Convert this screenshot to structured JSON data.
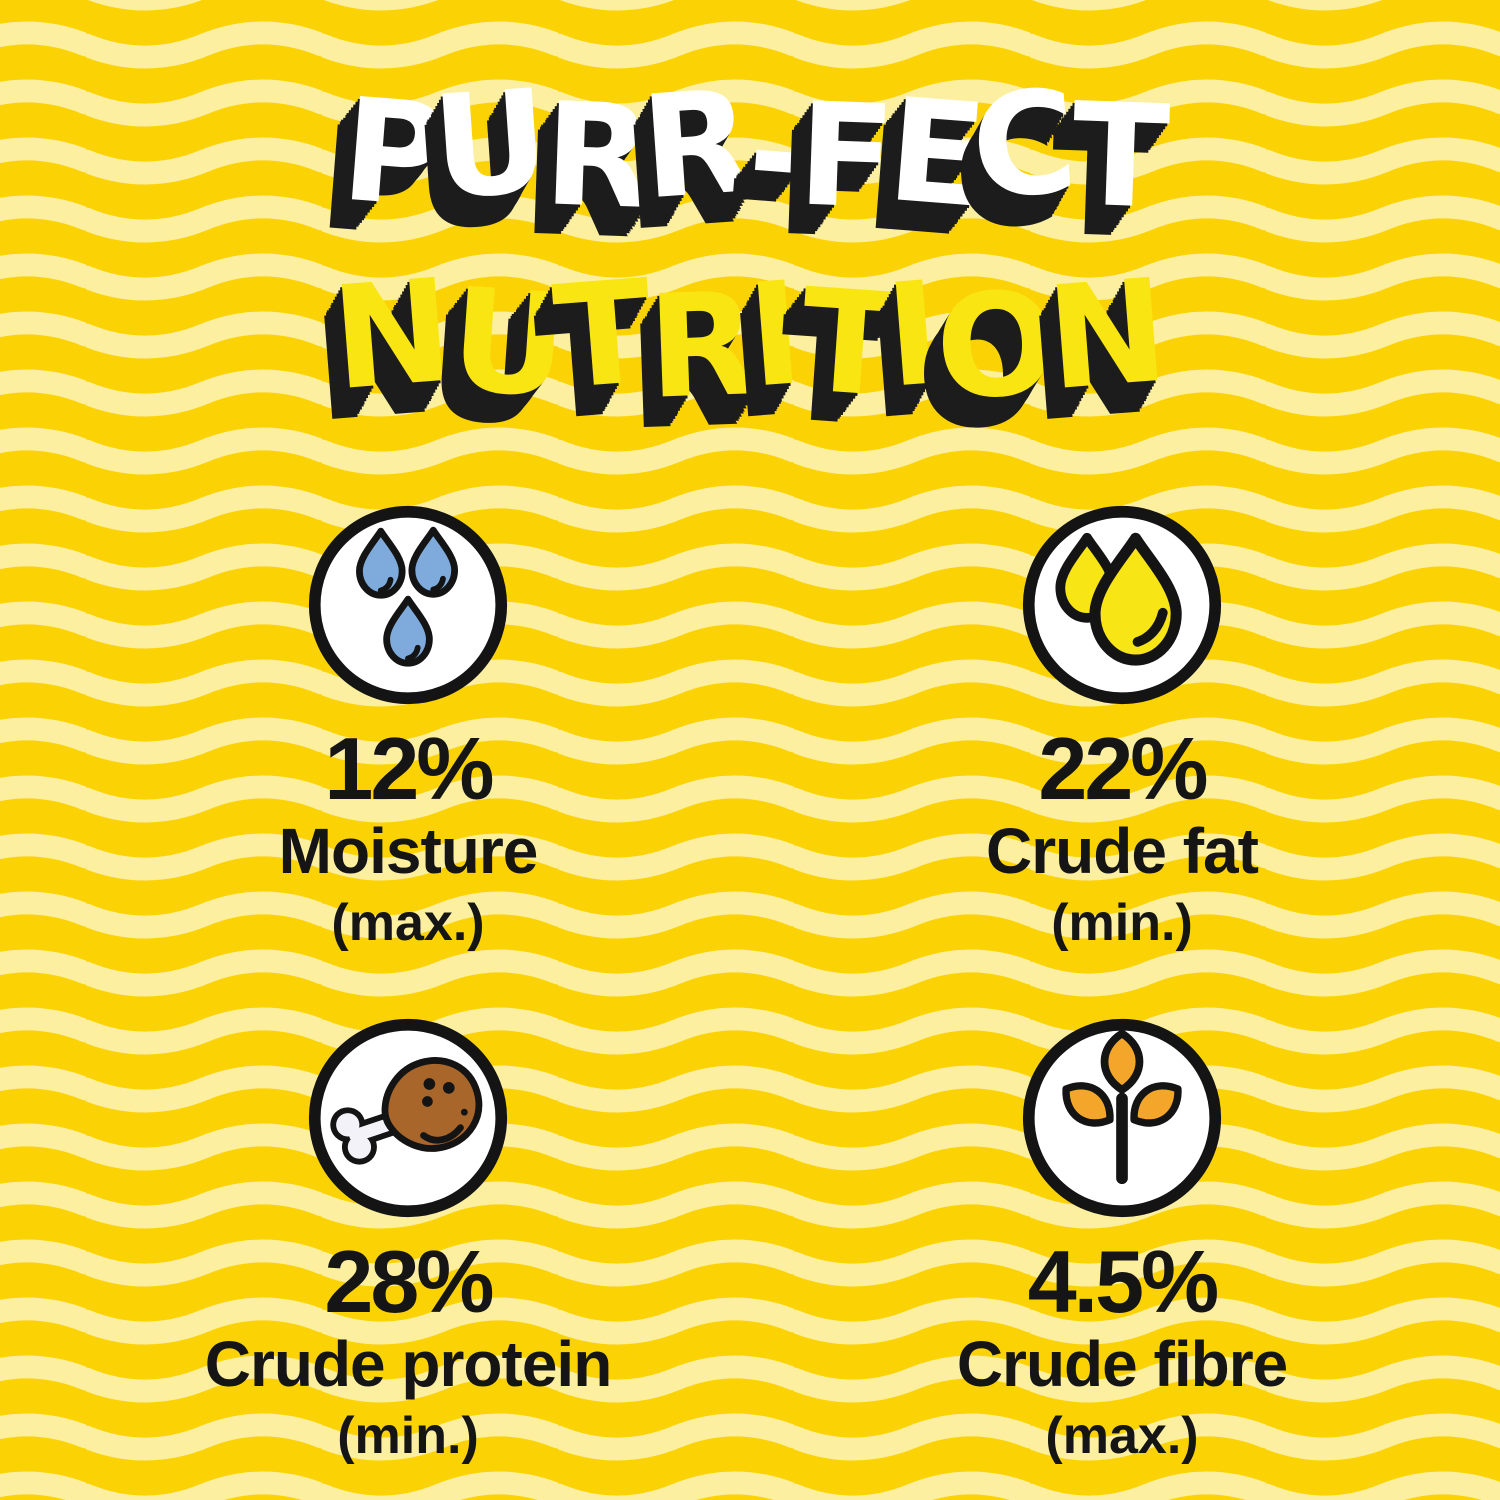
{
  "title": {
    "line1": "PURR-FECT",
    "line2": "NUTRITION"
  },
  "stats": [
    {
      "value": "12%",
      "label": "Moisture",
      "qualifier": "(max.)",
      "icon": "water-drops-icon"
    },
    {
      "value": "22%",
      "label": "Crude fat",
      "qualifier": "(min.)",
      "icon": "oil-drops-icon"
    },
    {
      "value": "28%",
      "label": "Crude protein",
      "qualifier": "(min.)",
      "icon": "chicken-drumstick-icon"
    },
    {
      "value": "4.5%",
      "label": "Crude fibre",
      "qualifier": "(max.)",
      "icon": "plant-leaves-icon"
    }
  ],
  "colors": {
    "background_gold": "#FBD304",
    "wave_pale_yellow": "#FCEFA0",
    "title_line1_fill": "#FFFFFF",
    "title_line2_fill": "#F9E511",
    "title_shadow_black": "#1C1C1C",
    "text_black": "#151515",
    "icon_outline_black": "#141414",
    "icon_circle_white": "#FFFFFF",
    "water_drop_blue": "#7FABDC",
    "oil_drop_yellow": "#F8E515",
    "drumstick_brown": "#A9662B",
    "bone_white": "#F2F2F8",
    "leaf_orange": "#F4A62A"
  }
}
